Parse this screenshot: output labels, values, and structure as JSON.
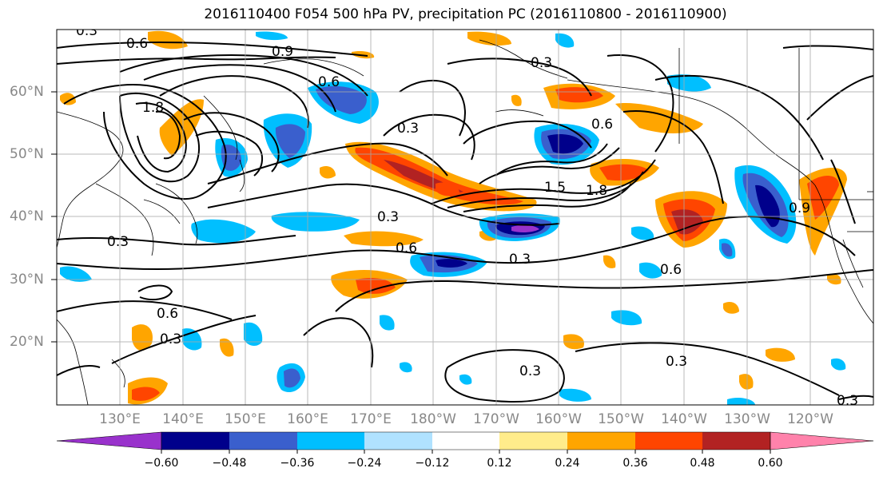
{
  "title": "2016110400 F054 500 hPa PV, precipitation PC (2016110800 - 2016110900)",
  "lat_labels": [
    "60°N",
    "50°N",
    "40°N",
    "30°N",
    "20°N"
  ],
  "lon_labels": [
    "130°E",
    "140°E",
    "150°E",
    "160°E",
    "170°E",
    "180°W",
    "170°W",
    "160°W",
    "150°W",
    "140°W",
    "130°W",
    "120°W"
  ],
  "contour_labels": [
    "0.6",
    "0.9",
    "0.6",
    "1.8",
    "0.3",
    "0.6",
    "0.3",
    "0.6",
    "0.3",
    "0.6",
    "0.3",
    "0.6",
    "0.3",
    "0.3",
    "0.3",
    "1.8",
    "1.5",
    "0.9",
    "0.3",
    "0.3",
    "0.3"
  ],
  "colorbar": {
    "colors": [
      "#9932cc",
      "#00008b",
      "#3a5fcd",
      "#00bfff",
      "#b0e2ff",
      "#ffffff",
      "#ffec8b",
      "#ffa500",
      "#ff4500",
      "#b22222",
      "#ff82ab"
    ],
    "tick_labels": [
      "−0.60",
      "−0.48",
      "−0.36",
      "−0.24",
      "−0.12",
      "0.12",
      "0.24",
      "0.36",
      "0.48",
      "0.60"
    ]
  }
}
